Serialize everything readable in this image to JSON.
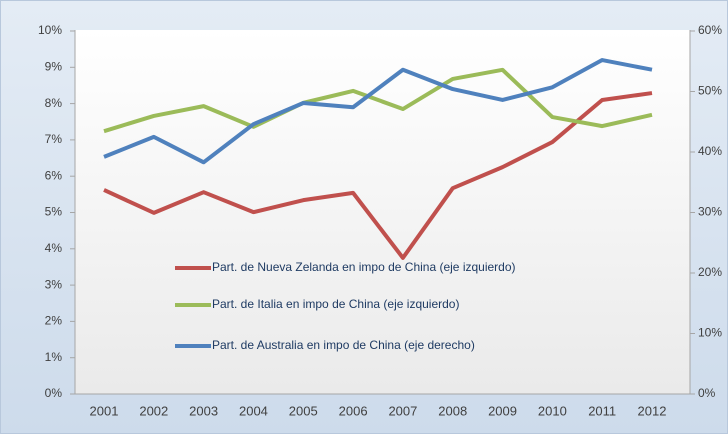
{
  "chart_data": {
    "type": "line",
    "categories": [
      "2001",
      "2002",
      "2003",
      "2004",
      "2005",
      "2006",
      "2007",
      "2008",
      "2009",
      "2010",
      "2011",
      "2012"
    ],
    "series": [
      {
        "name": "Part. de Nueva Zelanda en impo de China (eje izquierdo)",
        "color": "#c0504d",
        "axis": "y",
        "values": [
          5.62,
          4.99,
          5.56,
          5.01,
          5.34,
          5.54,
          3.75,
          5.67,
          6.25,
          6.94,
          8.1,
          8.29
        ]
      },
      {
        "name": "Part. de Italia en impo de China (eje izquierdo)",
        "color": "#9bbb59",
        "axis": "y",
        "values": [
          7.24,
          7.66,
          7.93,
          7.36,
          8.02,
          8.35,
          7.85,
          8.68,
          8.93,
          7.63,
          7.38,
          7.69
        ]
      },
      {
        "name": "Part. de Australia en impo de China (eje derecho)",
        "color": "#4f81bd",
        "axis": "y2",
        "values": [
          39.2,
          42.5,
          38.3,
          44.6,
          48.1,
          47.4,
          53.6,
          50.4,
          48.6,
          50.7,
          55.2,
          53.6
        ]
      }
    ],
    "ylim": [
      0,
      10
    ],
    "yticks": [
      {
        "value": 0,
        "label": "0%"
      },
      {
        "value": 1,
        "label": "1%"
      },
      {
        "value": 2,
        "label": "2%"
      },
      {
        "value": 3,
        "label": "3%"
      },
      {
        "value": 4,
        "label": "4%"
      },
      {
        "value": 5,
        "label": "5%"
      },
      {
        "value": 6,
        "label": "6%"
      },
      {
        "value": 7,
        "label": "7%"
      },
      {
        "value": 8,
        "label": "8%"
      },
      {
        "value": 9,
        "label": "9%"
      },
      {
        "value": 10,
        "label": "10%"
      }
    ],
    "y2lim": [
      0,
      60
    ],
    "y2ticks": [
      {
        "value": 0,
        "label": "0%"
      },
      {
        "value": 10,
        "label": "10%"
      },
      {
        "value": 20,
        "label": "20%"
      },
      {
        "value": 30,
        "label": "30%"
      },
      {
        "value": 40,
        "label": "40%"
      },
      {
        "value": 50,
        "label": "50%"
      },
      {
        "value": 60,
        "label": "60%"
      }
    ],
    "grid": false
  }
}
